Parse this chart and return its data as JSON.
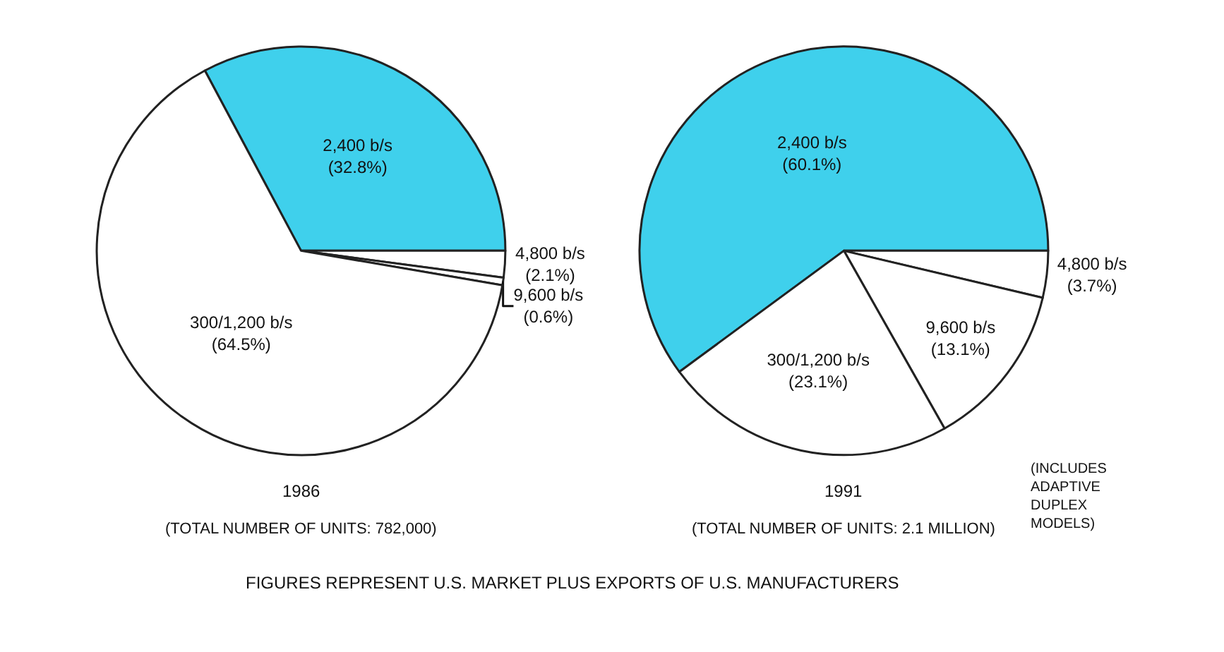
{
  "chart_data": [
    {
      "type": "pie",
      "title": "1986",
      "subtitle": "(TOTAL NUMBER OF UNITS: 782,000)",
      "categories": [
        "2,400 b/s",
        "4,800 b/s",
        "9,600 b/s",
        "300/1,200 b/s"
      ],
      "values": [
        32.8,
        2.1,
        0.6,
        64.5
      ],
      "value_labels": [
        "(32.8%)",
        "(2.1%)",
        "(0.6%)",
        "(64.5%)"
      ],
      "colors": [
        "#3fd0ec",
        "#ffffff",
        "#ffffff",
        "#ffffff"
      ],
      "annotations": [
        "FIGURES REPRESENT U.S. MARKET PLUS EXPORTS OF U.S. MANUFACTURERS"
      ]
    },
    {
      "type": "pie",
      "title": "1991",
      "subtitle": "(TOTAL NUMBER OF UNITS: 2.1 MILLION)",
      "categories": [
        "2,400 b/s",
        "4,800 b/s",
        "9,600 b/s",
        "300/1,200 b/s"
      ],
      "values": [
        60.1,
        3.7,
        13.1,
        23.1
      ],
      "value_labels": [
        "(60.1%)",
        "(3.7%)",
        "(13.1%)",
        "(23.1%)"
      ],
      "colors": [
        "#3fd0ec",
        "#ffffff",
        "#ffffff",
        "#ffffff"
      ],
      "annotations": [
        "(INCLUDES ADAPTIVE DUPLEX MODELS)"
      ]
    }
  ]
}
